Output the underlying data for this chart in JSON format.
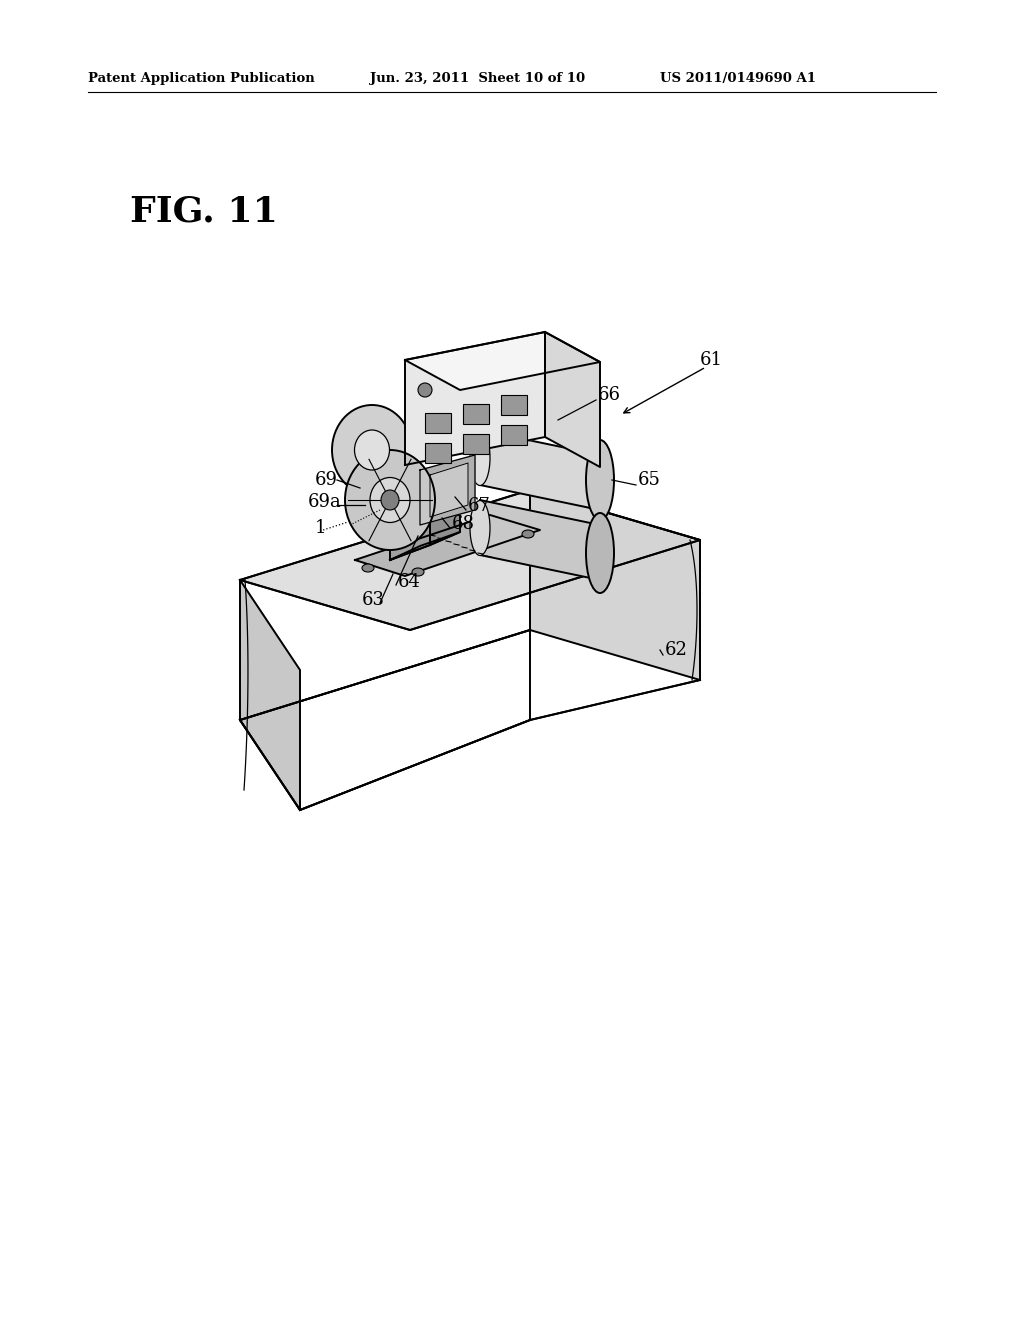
{
  "page_background": "#ffffff",
  "header_text_left": "Patent Application Publication",
  "header_text_mid": "Jun. 23, 2011  Sheet 10 of 10",
  "header_text_right": "US 2011/0149690 A1",
  "figure_label": "FIG. 11",
  "lw_main": 1.4,
  "lw_thin": 0.9,
  "color_main": "#000000",
  "fill_light": "#e8e8e8",
  "fill_mid": "#d0d0d0",
  "fill_dark": "#b0b0b0",
  "fill_white": "#f5f5f5"
}
